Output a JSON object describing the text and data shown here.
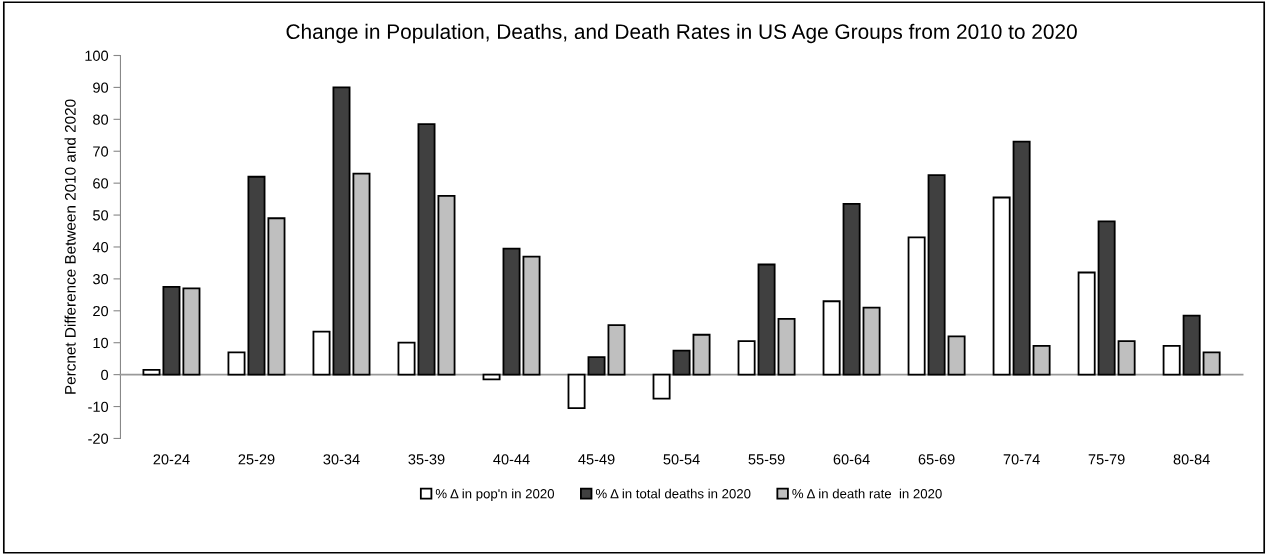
{
  "chart_data": {
    "type": "bar",
    "title": "Change in Population, Deaths, and Death Rates in US Age Groups from 2010 to 2020",
    "ylabel": "Percnet Difference Between 2010 and 2020",
    "categories": [
      "20-24",
      "25-29",
      "30-34",
      "35-39",
      "40-44",
      "45-49",
      "50-54",
      "55-59",
      "60-64",
      "65-69",
      "70-74",
      "75-79",
      "80-84"
    ],
    "series": [
      {
        "name": "% Δ in pop'n in 2020",
        "color": "#ffffff",
        "values": [
          1.5,
          7,
          13.5,
          10,
          -1.5,
          -10.5,
          -7.5,
          10.5,
          23,
          43,
          55.5,
          32,
          9
        ]
      },
      {
        "name": "% Δ in total deaths in 2020",
        "color": "#404040",
        "values": [
          27.5,
          62,
          90,
          78.5,
          39.5,
          5.5,
          7.5,
          34.5,
          53.5,
          62.5,
          73,
          48,
          18.5
        ]
      },
      {
        "name": "% Δ in death rate  in 2020",
        "color": "#bfbfbf",
        "values": [
          27,
          49,
          63,
          56,
          37,
          15.5,
          12.5,
          17.5,
          21,
          12,
          9,
          10.5,
          7
        ]
      }
    ],
    "ylim": [
      -20,
      100
    ],
    "yticks": [
      -20,
      -10,
      0,
      10,
      20,
      30,
      40,
      50,
      60,
      70,
      80,
      90,
      100
    ],
    "legend": "bottom"
  }
}
